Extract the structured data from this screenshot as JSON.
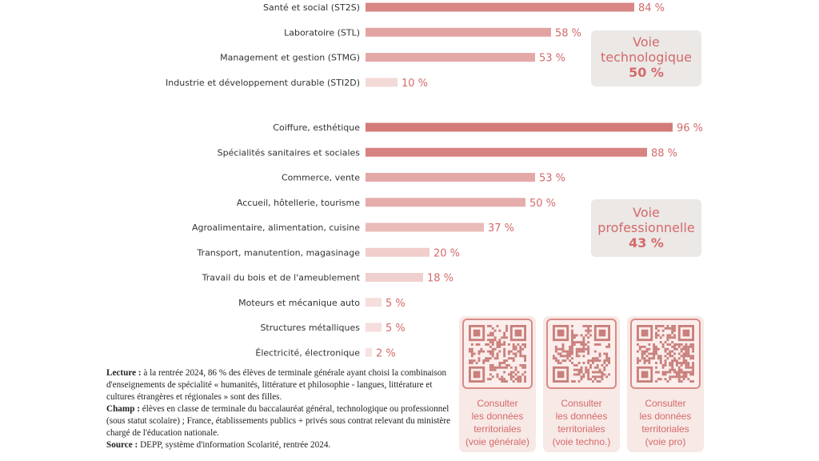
{
  "chart_data": {
    "type": "bar",
    "orientation": "horizontal",
    "unit": "%",
    "groups": [
      {
        "name": "Voie technologique",
        "share": "50 %",
        "categories": [
          "Santé et social (ST2S)",
          "Laboratoire (STL)",
          "Management et gestion (STMG)",
          "Industrie et développement durable (STI2D)"
        ],
        "values": [
          84,
          58,
          53,
          10
        ],
        "value_labels": [
          "84 %",
          "58 %",
          "53 %",
          "10 %"
        ]
      },
      {
        "name": "Voie professionnelle",
        "share": "43 %",
        "categories": [
          "Coiffure, esthétique",
          "Spécialités sanitaires et sociales",
          "Commerce, vente",
          "Accueil, hôtellerie, tourisme",
          "Agroalimentaire, alimentation, cuisine",
          "Transport, manutention, magasinage",
          "Travail du bois et de l'ameublement",
          "Moteurs et mécanique auto",
          "Structures métalliques",
          "Électricité, électronique"
        ],
        "values": [
          96,
          88,
          53,
          50,
          37,
          20,
          18,
          5,
          5,
          2
        ],
        "value_labels": [
          "96 %",
          "88 %",
          "53 %",
          "50 %",
          "37 %",
          "20 %",
          "18 %",
          "5 %",
          "5 %",
          "2 %"
        ]
      }
    ],
    "xlim": [
      0,
      100
    ],
    "grid": false,
    "colors": {
      "label": "#d46a6a",
      "bar_high": "#d47a78",
      "bar_low": "#f7e4e2"
    }
  },
  "panels": {
    "tech": {
      "title": "Voie technologique",
      "pct": "50 %"
    },
    "pro": {
      "title": "Voie professionnelle",
      "pct": "43 %"
    }
  },
  "notes": {
    "lecture_label": "Lecture :",
    "lecture_text": " à la rentrée 2024, 86 % des élèves de terminale générale ayant choisi la combinaison d'enseignements de spécialité « humanités, littérature et philosophie - langues, littérature et cultures étrangères et régionales » sont des filles.",
    "champ_label": "Champ :",
    "champ_text": " élèves en classe de terminale du baccalauréat général, technologique ou professionnel (sous statut scolaire) ; France, établissements publics + privés sous contrat relevant du ministère chargé de l'éducation nationale.",
    "source_label": "Source :",
    "source_text": " DEPP, système d'information Scolarité, rentrée 2024."
  },
  "qr_cards": [
    {
      "line1": "Consulter",
      "line2": "les données",
      "line3": "territoriales",
      "line4": "(voie générale)"
    },
    {
      "line1": "Consulter",
      "line2": "les données",
      "line3": "territoriales",
      "line4": "(voie techno.)"
    },
    {
      "line1": "Consulter",
      "line2": "les données",
      "line3": "territoriales",
      "line4": "(voie pro)"
    }
  ]
}
